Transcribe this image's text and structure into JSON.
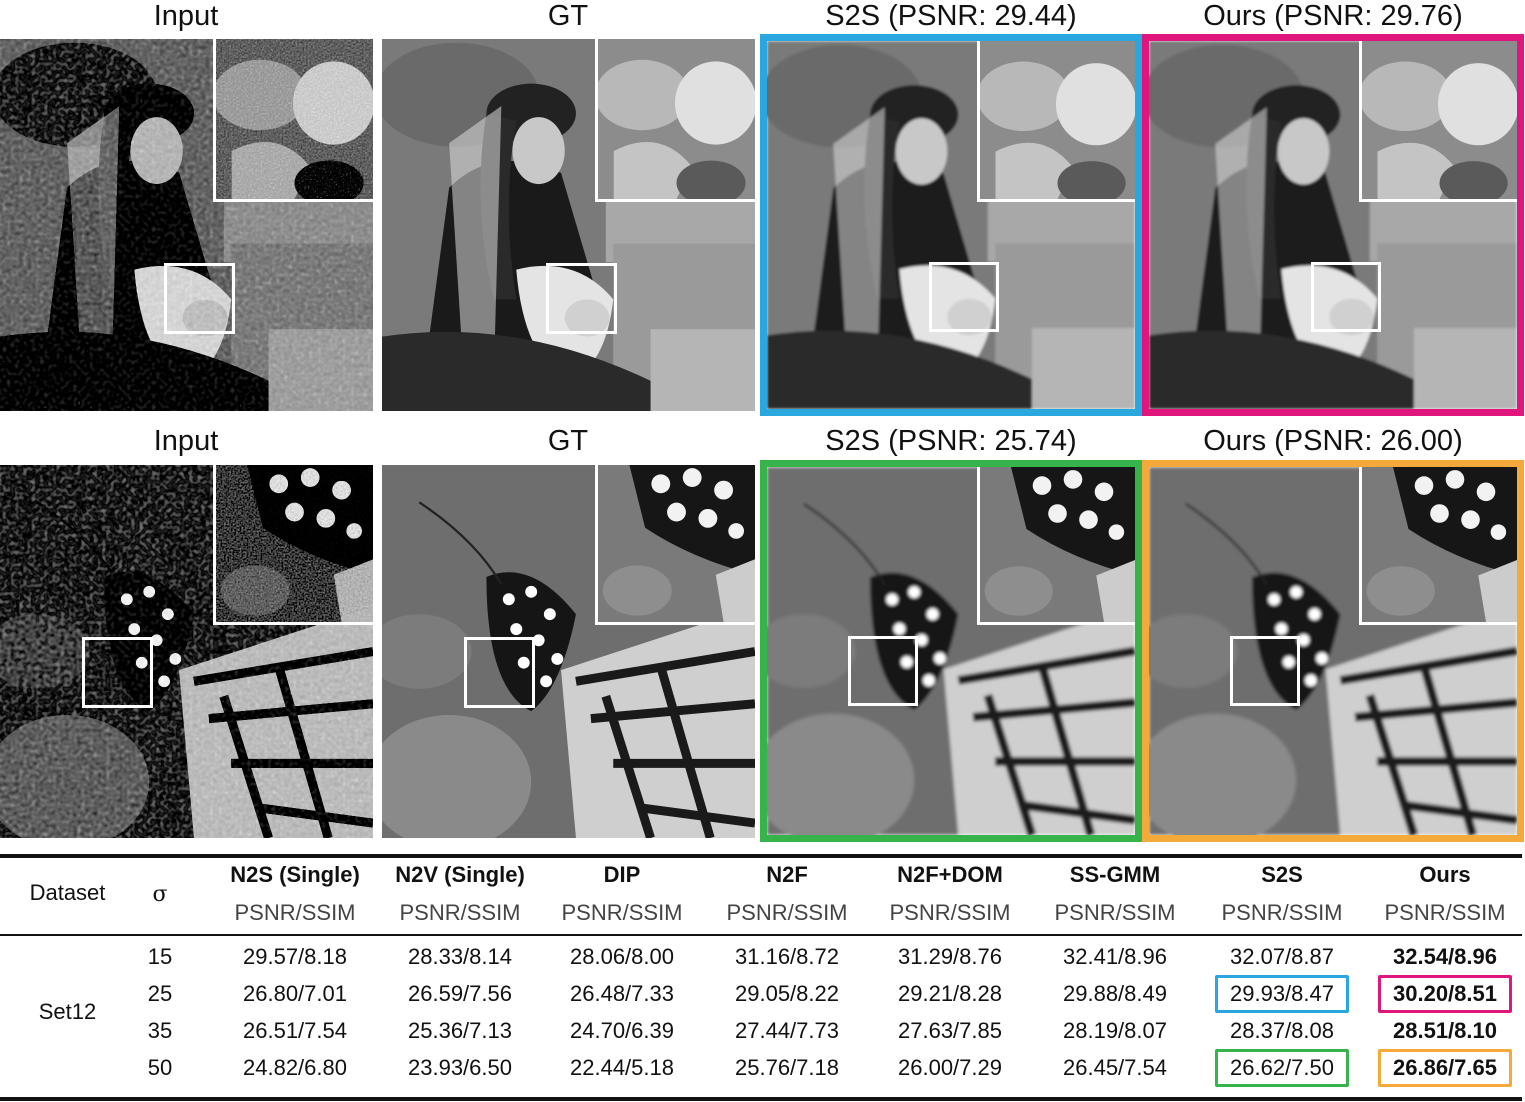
{
  "rows": [
    {
      "titles": [
        "Input",
        "GT",
        "S2S (PSNR: 29.44)",
        "Ours (PSNR: 29.76)"
      ],
      "subject": "man",
      "frame_colors": [
        null,
        null,
        "#29a8e0",
        "#e0157e"
      ]
    },
    {
      "titles": [
        "Input",
        "GT",
        "S2S (PSNR: 25.74)",
        "Ours (PSNR: 26.00)"
      ],
      "subject": "butterfly",
      "frame_colors": [
        null,
        null,
        "#36b34a",
        "#f5a93a"
      ]
    }
  ],
  "table": {
    "col_dataset": "Dataset",
    "col_sigma": "σ",
    "methods": [
      "N2S (Single)",
      "N2V (Single)",
      "DIP",
      "N2F",
      "N2F+DOM",
      "SS-GMM",
      "S2S",
      "Ours"
    ],
    "metric": "PSNR/SSIM",
    "dataset_name": "Set12",
    "sigmas": [
      "15",
      "25",
      "35",
      "50"
    ],
    "values": [
      [
        "29.57/8.18",
        "28.33/8.14",
        "28.06/8.00",
        "31.16/8.72",
        "31.29/8.76",
        "32.41/8.96",
        "32.07/8.87",
        "32.54/8.96"
      ],
      [
        "26.80/7.01",
        "26.59/7.56",
        "26.48/7.33",
        "29.05/8.22",
        "29.21/8.28",
        "29.88/8.49",
        "29.93/8.47",
        "30.20/8.51"
      ],
      [
        "26.51/7.54",
        "25.36/7.13",
        "24.70/6.39",
        "27.44/7.73",
        "27.63/7.85",
        "28.19/8.07",
        "28.37/8.08",
        "28.51/8.10"
      ],
      [
        "24.82/6.80",
        "23.93/6.50",
        "22.44/5.18",
        "25.76/7.18",
        "26.00/7.29",
        "26.45/7.54",
        "26.62/7.50",
        "26.86/7.65"
      ]
    ],
    "highlights": [
      {
        "row": 1,
        "col": 6,
        "color": "#29a8e0"
      },
      {
        "row": 1,
        "col": 7,
        "color": "#e0157e"
      },
      {
        "row": 3,
        "col": 6,
        "color": "#36b34a"
      },
      {
        "row": 3,
        "col": 7,
        "color": "#f5a93a"
      }
    ]
  }
}
